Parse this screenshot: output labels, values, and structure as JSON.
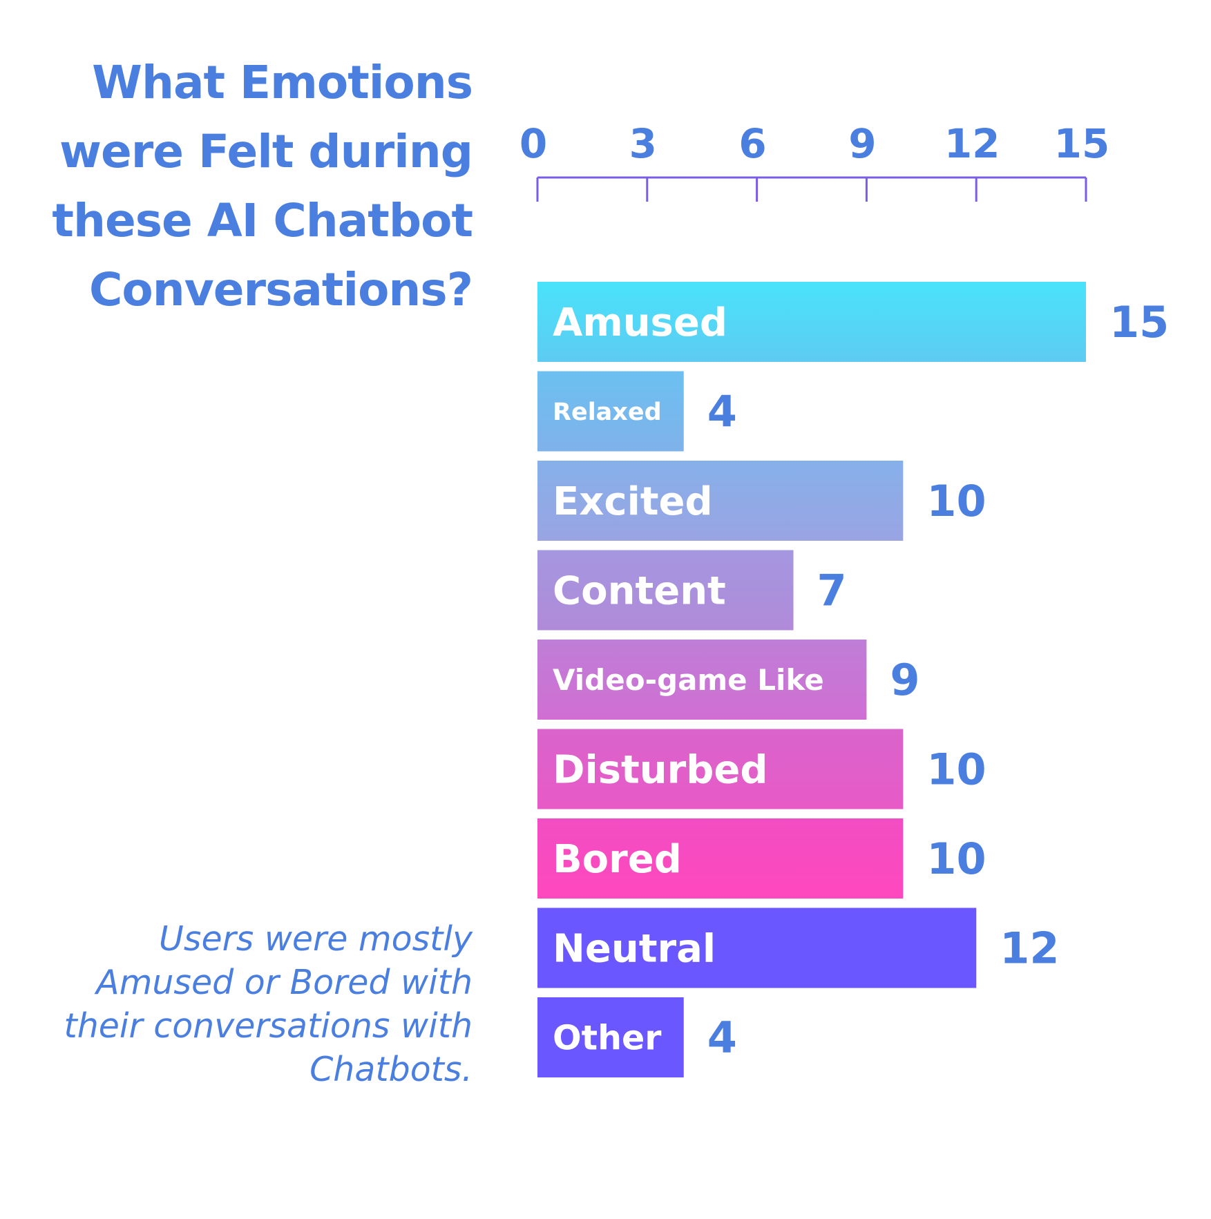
{
  "title": "What Emotions were Felt during these AI Chatbot Conversations?",
  "note": "Users were mostly Amused or Bored with their conversations with Chatbots.",
  "colors": {
    "text": "#4a7fe0",
    "axis": "#7b5ce6",
    "bar_label": "#ffffff"
  },
  "chart_data": {
    "type": "bar",
    "orientation": "horizontal",
    "title": "What Emotions were Felt during these AI Chatbot Conversations?",
    "categories": [
      "Amused",
      "Relaxed",
      "Excited",
      "Content",
      "Video-game Like",
      "Disturbed",
      "Bored",
      "Neutral",
      "Other"
    ],
    "values": [
      15,
      4,
      10,
      7,
      9,
      10,
      10,
      12,
      4
    ],
    "value_labels": [
      "15",
      "4",
      "10",
      "7",
      "9",
      "10",
      "10",
      "12",
      "4"
    ],
    "bar_colors": [
      [
        "#49e3fb",
        "#5ecbf2"
      ],
      [
        "#6cc0f1",
        "#7fb2ea"
      ],
      [
        "#86b0ea",
        "#9aa4e3"
      ],
      [
        "#a597e0",
        "#b08ad9"
      ],
      [
        "#bf7ed7",
        "#d06ed3"
      ],
      [
        "#d964cc",
        "#e85ac6"
      ],
      [
        "#f24ec3",
        "#ff48be"
      ],
      [
        "#6a57ff",
        "#6a57ff"
      ],
      [
        "#6a57ff",
        "#6a57ff"
      ]
    ],
    "x_ticks": [
      "0",
      "3",
      "6",
      "9",
      "12",
      "15"
    ],
    "tick_values": [
      0,
      3,
      6,
      9,
      12,
      15
    ],
    "xlim": [
      0,
      15
    ],
    "axis_position": "top",
    "grid": false,
    "legend": "none"
  }
}
